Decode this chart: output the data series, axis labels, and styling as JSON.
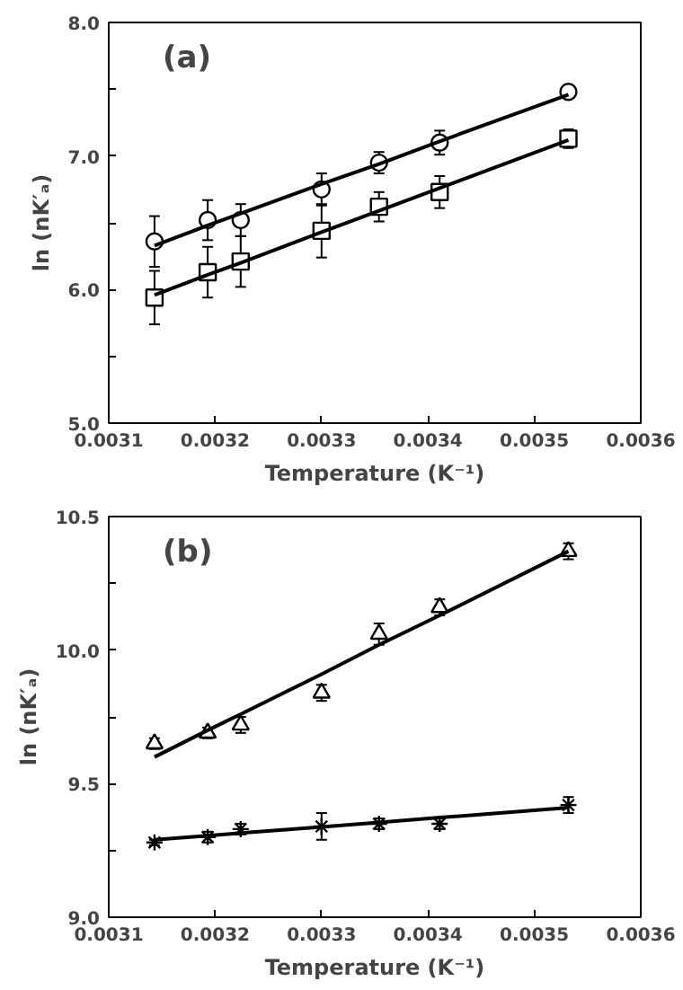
{
  "chart_data": [
    {
      "type": "scatter",
      "annotations": [
        "(a)"
      ],
      "xlabel": "Temperature (K⁻¹)",
      "ylabel": "ln (nK′ₐ)",
      "x": [
        0.003143,
        0.003193,
        0.003224,
        0.0033,
        0.003354,
        0.003411,
        0.003532
      ],
      "xlim": [
        0.0031,
        0.0036
      ],
      "xticks": [
        0.0031,
        0.0032,
        0.0033,
        0.0034,
        0.0035,
        0.0036
      ],
      "ylim": [
        5.0,
        8.0
      ],
      "yticks": [
        {
          "value": 5.0,
          "label": "5.0"
        },
        {
          "value": 5.5,
          "label": null
        },
        {
          "value": 6.0,
          "label": "6.0"
        },
        {
          "value": 6.5,
          "label": null
        },
        {
          "value": 7.0,
          "label": "7.0"
        },
        {
          "value": 7.5,
          "label": null
        },
        {
          "value": 8.0,
          "label": "8.0"
        }
      ],
      "grid": false,
      "series": [
        {
          "color": "#000000",
          "marker": "circle",
          "values": [
            6.36,
            6.52,
            6.52,
            6.75,
            6.95,
            7.1,
            7.48
          ],
          "errors": [
            0.19,
            0.15,
            0.12,
            0.12,
            0.08,
            0.09,
            0.03
          ]
        },
        {
          "color": "#000000",
          "marker": "square",
          "values": [
            5.94,
            6.13,
            6.21,
            6.44,
            6.62,
            6.73,
            7.13
          ],
          "errors": [
            0.2,
            0.19,
            0.19,
            0.2,
            0.11,
            0.12,
            0.07
          ]
        },
        {
          "type": "line",
          "color": "#000000",
          "values": [
            6.33,
            6.48,
            6.57,
            6.79,
            6.94,
            7.11,
            7.46
          ]
        },
        {
          "type": "line",
          "color": "#000000",
          "values": [
            5.96,
            6.11,
            6.2,
            6.43,
            6.59,
            6.76,
            7.12
          ]
        }
      ]
    },
    {
      "type": "scatter",
      "annotations": [
        "(b)"
      ],
      "xlabel": "Temperature (K⁻¹)",
      "ylabel": "ln (nK′ₐ)",
      "x": [
        0.003143,
        0.003193,
        0.003224,
        0.0033,
        0.003354,
        0.003411,
        0.003532
      ],
      "xlim": [
        0.0031,
        0.0036
      ],
      "xticks": [
        0.0031,
        0.0032,
        0.0033,
        0.0034,
        0.0035,
        0.0036
      ],
      "ylim": [
        9.0,
        10.5
      ],
      "yticks": [
        {
          "value": 9.0,
          "label": "9.0"
        },
        {
          "value": 9.25,
          "label": null
        },
        {
          "value": 9.5,
          "label": "9.5"
        },
        {
          "value": 9.75,
          "label": null
        },
        {
          "value": 10.0,
          "label": "10.0"
        },
        {
          "value": 10.25,
          "label": null
        },
        {
          "value": 10.5,
          "label": "10.5"
        }
      ],
      "grid": false,
      "series": [
        {
          "color": "#000000",
          "marker": "triangle",
          "values": [
            9.65,
            9.69,
            9.72,
            9.84,
            10.06,
            10.16,
            10.37
          ],
          "errors": [
            0.02,
            0.02,
            0.03,
            0.03,
            0.04,
            0.03,
            0.03
          ]
        },
        {
          "color": "#000000",
          "marker": "cross",
          "values": [
            9.28,
            9.3,
            9.33,
            9.34,
            9.35,
            9.35,
            9.42
          ],
          "errors": [
            0.01,
            0.02,
            0.02,
            0.05,
            0.02,
            0.02,
            0.03
          ]
        },
        {
          "type": "line",
          "color": "#000000",
          "values": [
            9.6,
            9.7,
            9.76,
            9.91,
            10.02,
            10.13,
            10.37
          ]
        },
        {
          "type": "line",
          "color": "#000000",
          "values": [
            9.29,
            9.305,
            9.315,
            9.338,
            9.355,
            9.373,
            9.41
          ]
        }
      ]
    }
  ]
}
